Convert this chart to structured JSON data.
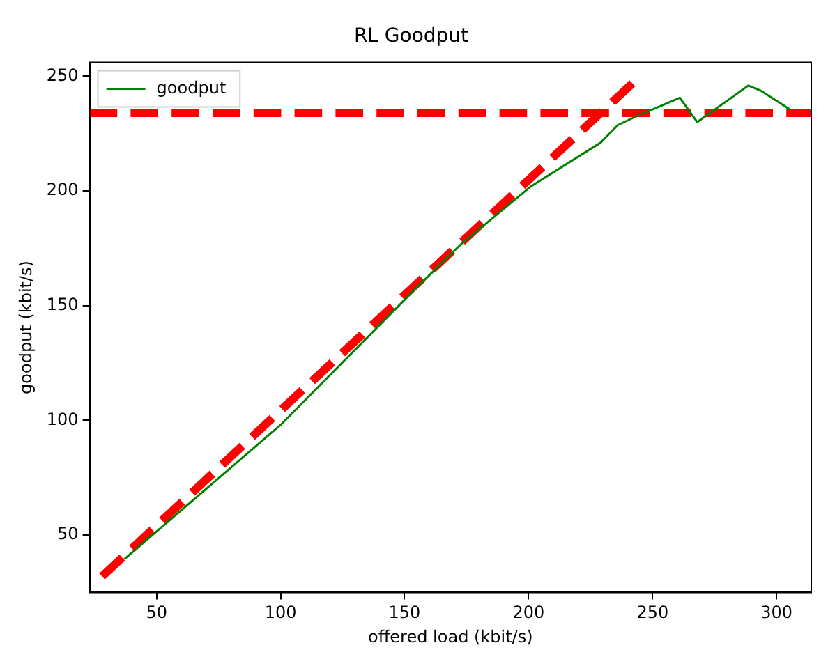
{
  "chart_data": {
    "type": "line",
    "title": "RL Goodput",
    "xlabel": "offered load (kbit/s)",
    "ylabel": "goodput (kbit/s)",
    "xlim": [
      23,
      314
    ],
    "xticks": [
      50,
      100,
      150,
      200,
      250,
      300
    ],
    "ylim": [
      25,
      256
    ],
    "yticks": [
      50,
      100,
      150,
      200,
      250
    ],
    "grid": false,
    "legend": "top left",
    "marker": "none",
    "series": [
      {
        "name": "goodput",
        "color": "#008000",
        "line_style": "solid",
        "x": [
          37,
          100,
          155,
          173,
          201,
          229,
          236,
          244,
          261,
          268,
          288.6,
          293.8,
          305.6
        ],
        "values": [
          39.5,
          98,
          158,
          177,
          202,
          221,
          228.7,
          232.8,
          240.6,
          230,
          245.9,
          243.6,
          235.4
        ]
      },
      {
        "type": "line",
        "color": "#ff0000",
        "line_style": "dashed",
        "x": [
          28,
          244
        ],
        "values": [
          32,
          249
        ]
      }
    ],
    "ref_lines": [
      {
        "axis": "y",
        "value": 234,
        "color": "#ff0000",
        "line_style": "dashed"
      }
    ]
  }
}
